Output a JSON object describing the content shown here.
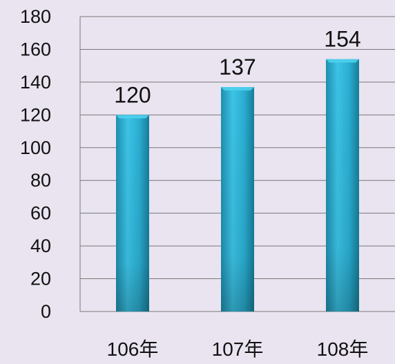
{
  "chart_data": {
    "type": "bar",
    "categories": [
      "106年",
      "107年",
      "108年"
    ],
    "values": [
      120,
      137,
      154
    ],
    "data_labels": [
      "120",
      "137",
      "154"
    ],
    "ylim": [
      0,
      180
    ],
    "yticks": [
      0,
      20,
      40,
      60,
      80,
      100,
      120,
      140,
      160,
      180
    ],
    "grid": true,
    "legend": "none",
    "colors": {
      "bar_light": "#4fd0ee",
      "bar_mid": "#2bb3d6",
      "bar_dark": "#157a92",
      "background": "#e9e4f0",
      "grid": "#777777"
    }
  }
}
